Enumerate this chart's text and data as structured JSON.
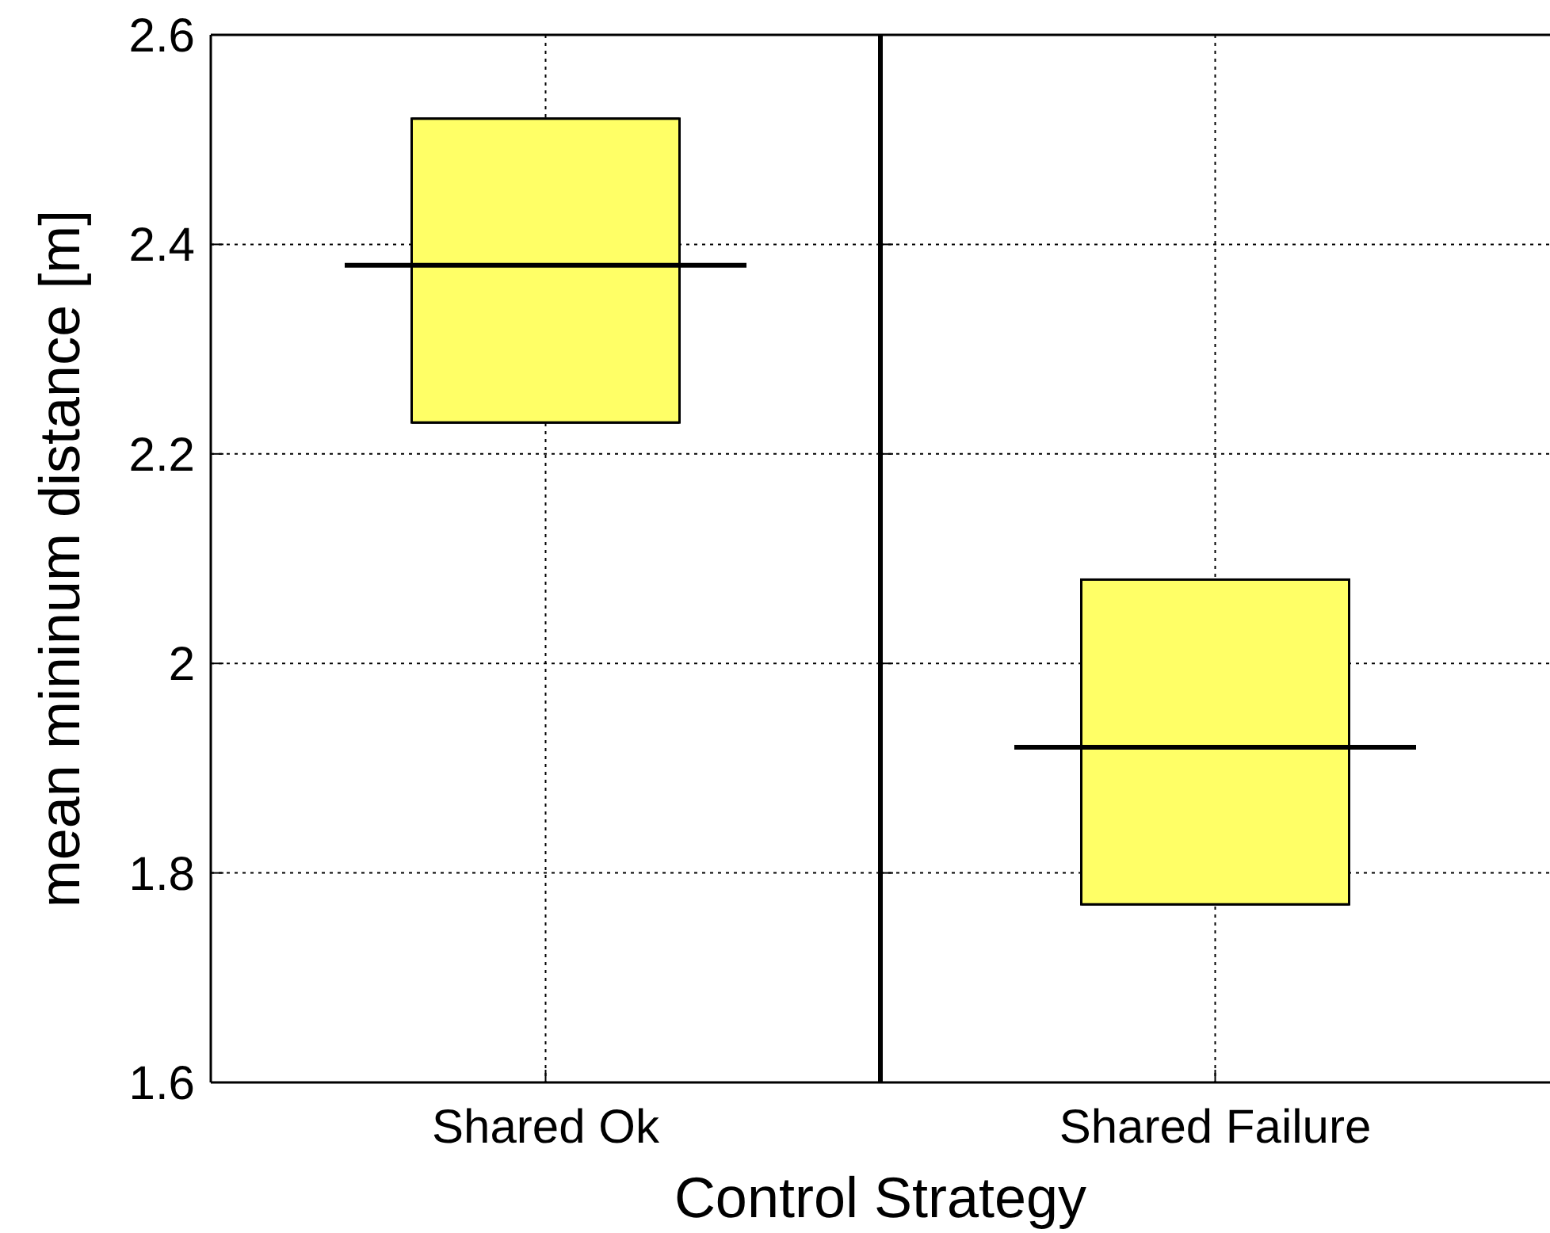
{
  "chart_data": [
    {
      "type": "box",
      "xlabel": "Control Strategy",
      "ylabel": "mean mininum distance [m]",
      "categories": [
        "Shared Ok"
      ],
      "boxes": [
        {
          "low": 2.23,
          "q1": 2.23,
          "median": 2.38,
          "q3": 2.52,
          "high": 2.52
        }
      ],
      "color": "#ffff66",
      "ylim": [
        1.6,
        2.6
      ],
      "yticks": [
        1.6,
        {
          "value": 1.8,
          "label": "1.8"
        },
        2,
        {
          "value": 2.2,
          "label": "2.2"
        },
        {
          "value": 2.4,
          "label": "2.4"
        },
        2.6
      ],
      "grid": true
    },
    {
      "type": "box",
      "categories": [
        "Shared Failure"
      ],
      "boxes": [
        {
          "low": 1.77,
          "q1": 1.77,
          "median": 1.92,
          "q3": 2.08,
          "high": 2.08
        }
      ],
      "color": "#ffff66",
      "ylim": [
        1.6,
        2.6
      ],
      "yticks": [
        1.6,
        1.8,
        2,
        2.2,
        2.4,
        2.6
      ],
      "grid": true,
      "tick_labels": "x"
    }
  ]
}
